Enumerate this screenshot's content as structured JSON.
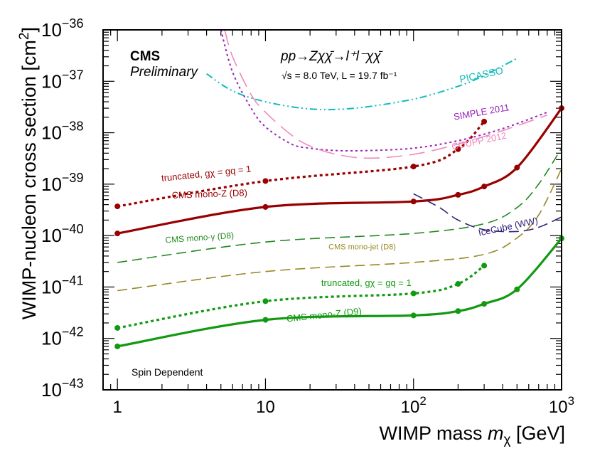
{
  "chart_data": {
    "type": "line",
    "title": "CMS Preliminary",
    "xlabel_main": "WIMP mass ",
    "xlabel_sym": "m",
    "xlabel_sub": "χ",
    "xlabel_unit": " [GeV]",
    "ylabel_main": "WIMP-nucleon cross section [cm",
    "ylabel_sup": "2",
    "ylabel_close": "]",
    "xscale": "log",
    "yscale": "log",
    "xlim": [
      0.8,
      1000
    ],
    "ylim": [
      1e-43,
      1e-36
    ],
    "x_ticks": [
      {
        "value": 1,
        "base": "1",
        "exp": ""
      },
      {
        "value": 10,
        "base": "10",
        "exp": ""
      },
      {
        "value": 100,
        "base": "10",
        "exp": "2"
      },
      {
        "value": 1000,
        "base": "10",
        "exp": "3"
      }
    ],
    "y_ticks": [
      {
        "value": 1e-36,
        "base": "10",
        "exp": "−36"
      },
      {
        "value": 1e-37,
        "base": "10",
        "exp": "−37"
      },
      {
        "value": 1e-38,
        "base": "10",
        "exp": "−38"
      },
      {
        "value": 1e-39,
        "base": "10",
        "exp": "−39"
      },
      {
        "value": 1e-40,
        "base": "10",
        "exp": "−40"
      },
      {
        "value": 1e-41,
        "base": "10",
        "exp": "−41"
      },
      {
        "value": 1e-42,
        "base": "10",
        "exp": "−42"
      },
      {
        "value": 1e-43,
        "base": "10",
        "exp": "−43"
      }
    ],
    "annotations": {
      "cms": "CMS",
      "preliminary": "Preliminary",
      "process": "pp→Zχχ̄→l⁺l⁻χχ̄",
      "energy": "√s = 8.0 TeV, L = 19.7 fb⁻¹",
      "spin": "Spin Dependent"
    },
    "series": [
      {
        "name": "CMS mono-Z (D8)",
        "color": "#990000",
        "style": "solid",
        "markers": true,
        "x": [
          1,
          10,
          100,
          200,
          300,
          500,
          1000
        ],
        "y": [
          1.1e-40,
          3.6e-40,
          4.6e-40,
          6.2e-40,
          9e-40,
          2.1e-39,
          3e-38
        ]
      },
      {
        "name": "truncated, gχ = gq = 1",
        "color": "#990000",
        "style": "dotted",
        "markers": true,
        "x": [
          1,
          10,
          100,
          200,
          300
        ],
        "y": [
          3.7e-40,
          1.15e-39,
          2.2e-39,
          4.8e-39,
          1.65e-38
        ]
      },
      {
        "name": "CMS mono-Z (D9)",
        "color": "#119911",
        "style": "solid",
        "markers": true,
        "x": [
          1,
          10,
          100,
          200,
          300,
          500,
          1000
        ],
        "y": [
          7e-43,
          2.3e-42,
          2.8e-42,
          3.4e-42,
          4.7e-42,
          9e-42,
          8.8e-41
        ]
      },
      {
        "name": "truncated, gχ = gq = 1",
        "color": "#119911",
        "style": "dotted",
        "markers": true,
        "x": [
          1,
          10,
          100,
          200,
          300
        ],
        "y": [
          1.6e-42,
          5.3e-42,
          7.5e-42,
          1.15e-41,
          2.6e-41
        ]
      },
      {
        "name": "CMS mono-γ (D8)",
        "color": "#228822",
        "style": "dashed",
        "markers": false,
        "x": [
          1,
          10,
          100,
          300,
          500,
          700,
          1000
        ],
        "y": [
          3e-41,
          7.5e-41,
          1.1e-40,
          1.7e-40,
          3.5e-40,
          1e-39,
          5e-39
        ]
      },
      {
        "name": "CMS mono-jet (D8)",
        "color": "#998822",
        "style": "dashed",
        "markers": false,
        "x": [
          1,
          10,
          100,
          300,
          500,
          700,
          1000
        ],
        "y": [
          8.5e-42,
          2e-41,
          3e-41,
          4.3e-41,
          9e-41,
          2.5e-40,
          2e-39
        ]
      },
      {
        "name": "IceCube (WW)",
        "color": "#332277",
        "style": "dashed",
        "markers": false,
        "x": [
          100,
          150,
          200,
          300,
          500,
          700,
          1000
        ],
        "y": [
          6.5e-40,
          3.5e-40,
          2e-40,
          1.3e-40,
          1.2e-40,
          1.45e-40,
          2.3e-40
        ]
      },
      {
        "name": "PICASSO",
        "color": "#11bbbb",
        "style": "dashdotdot",
        "markers": false,
        "x": [
          4,
          6,
          10,
          20,
          40,
          100,
          200,
          300,
          500
        ],
        "y": [
          1.4e-37,
          6.5e-38,
          4e-38,
          2.9e-38,
          3e-38,
          4.5e-38,
          8e-38,
          1.3e-37,
          2.8e-37
        ]
      },
      {
        "name": "SIMPLE 2011",
        "color": "#9922bb",
        "style": "dotted",
        "markers": false,
        "x": [
          5,
          6,
          8,
          10,
          15,
          20,
          30,
          50,
          100,
          200,
          400,
          800
        ],
        "y": [
          1e-36,
          1.5e-37,
          3e-38,
          1.3e-38,
          6e-39,
          5e-39,
          4.5e-39,
          4.5e-39,
          5e-39,
          7e-39,
          1.2e-38,
          2.5e-38
        ]
      },
      {
        "name": "COUPP 2012",
        "color": "#ee88bb",
        "style": "longdash",
        "markers": false,
        "x": [
          5.3,
          6,
          8,
          10,
          15,
          20,
          30,
          50,
          100,
          200,
          400,
          800
        ],
        "y": [
          1e-36,
          3e-37,
          5.5e-38,
          2.5e-38,
          9e-39,
          5.5e-39,
          3.8e-39,
          3.2e-39,
          3.8e-39,
          6e-39,
          1.1e-38,
          2.2e-38
        ]
      }
    ],
    "labels": [
      {
        "text": "CMS mono-Z (D8)",
        "color": "#990000",
        "x": 4.2,
        "y": 5.6e-40,
        "angle": -2,
        "size": 13
      },
      {
        "text": "truncated, gχ = gq = 1",
        "color": "#990000",
        "x": 4.0,
        "y": 1.4e-39,
        "angle": -6,
        "size": 13
      },
      {
        "text": "CMS mono-Z (D9)",
        "color": "#119911",
        "x": 25,
        "y": 2.5e-42,
        "angle": -6,
        "size": 13
      },
      {
        "text": "truncated, gχ = gq = 1",
        "color": "#119911",
        "x": 48,
        "y": 1.05e-41,
        "angle": 0,
        "size": 13
      },
      {
        "text": "CMS mono-γ (D8)",
        "color": "#228822",
        "x": 3.6,
        "y": 8e-41,
        "angle": -4,
        "size": 12
      },
      {
        "text": "CMS mono-jet (D8)",
        "color": "#998822",
        "x": 45,
        "y": 5.4e-41,
        "angle": 0,
        "size": 11
      },
      {
        "text": "IceCube (WW)",
        "color": "#332277",
        "x": 440,
        "y": 1.3e-40,
        "angle": -12,
        "size": 13
      },
      {
        "text": "PICASSO",
        "color": "#11bbbb",
        "x": 290,
        "y": 1.15e-37,
        "angle": -12,
        "size": 14
      },
      {
        "text": "SIMPLE 2011",
        "color": "#9922bb",
        "x": 290,
        "y": 2.2e-38,
        "angle": -10,
        "size": 13
      },
      {
        "text": "COUPP 2012",
        "color": "#ee88bb",
        "x": 280,
        "y": 6e-39,
        "angle": -12,
        "size": 13
      }
    ]
  }
}
